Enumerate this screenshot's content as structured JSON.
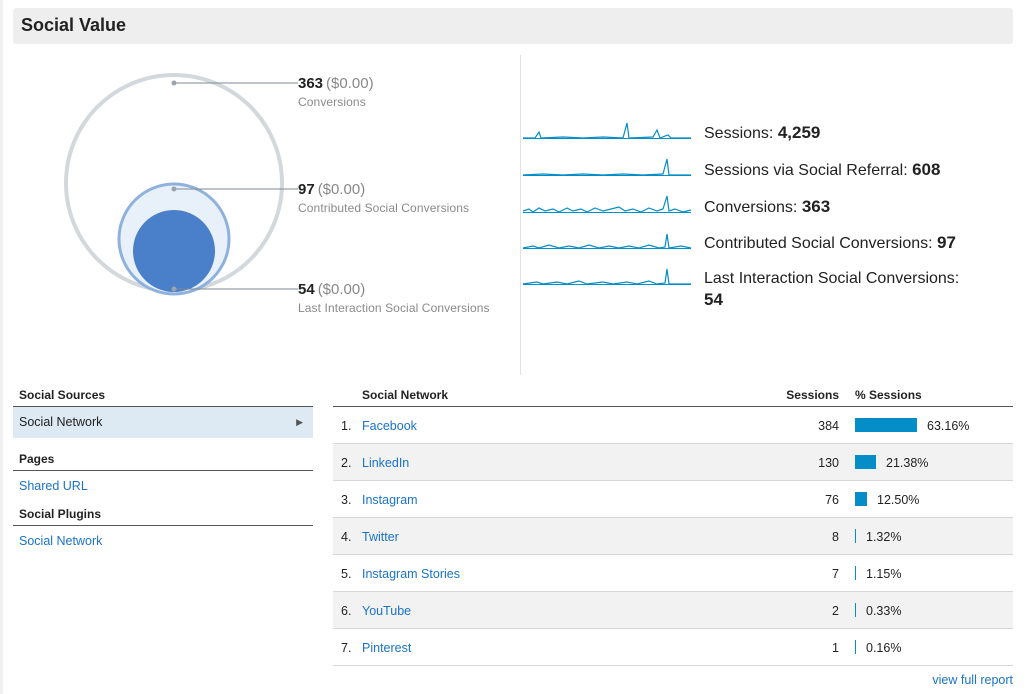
{
  "title": "Social Value",
  "circles": {
    "conversions": {
      "value": "363",
      "money": "($0.00)",
      "label": "Conversions"
    },
    "contributed": {
      "value": "97",
      "money": "($0.00)",
      "label": "Contributed Social Conversions"
    },
    "last": {
      "value": "54",
      "money": "($0.00)",
      "label": "Last Interaction Social Conversions"
    }
  },
  "sparklines": [
    {
      "label": "Sessions:",
      "value": "4,259"
    },
    {
      "label": "Sessions via Social Referral:",
      "value": "608"
    },
    {
      "label": "Conversions:",
      "value": "363"
    },
    {
      "label": "Contributed Social Conversions:",
      "value": "97"
    },
    {
      "label": "Last Interaction Social Conversions:",
      "value": "54"
    }
  ],
  "nav": {
    "sections": [
      {
        "header": "Social Sources",
        "items": [
          "Social Network"
        ]
      },
      {
        "header": "Pages",
        "items": [
          "Shared URL"
        ]
      },
      {
        "header": "Social Plugins",
        "items": [
          "Social Network"
        ]
      }
    ]
  },
  "table": {
    "headers": {
      "network": "Social Network",
      "sessions": "Sessions",
      "pct": "% Sessions"
    },
    "rows": [
      {
        "num": "1.",
        "name": "Facebook",
        "sessions": "384",
        "pct": "63.16%",
        "fraction": 0.6316
      },
      {
        "num": "2.",
        "name": "LinkedIn",
        "sessions": "130",
        "pct": "21.38%",
        "fraction": 0.2138
      },
      {
        "num": "3.",
        "name": "Instagram",
        "sessions": "76",
        "pct": "12.50%",
        "fraction": 0.125
      },
      {
        "num": "4.",
        "name": "Twitter",
        "sessions": "8",
        "pct": "1.32%",
        "fraction": 0.0132
      },
      {
        "num": "5.",
        "name": "Instagram Stories",
        "sessions": "7",
        "pct": "1.15%",
        "fraction": 0.0115
      },
      {
        "num": "6.",
        "name": "YouTube",
        "sessions": "2",
        "pct": "0.33%",
        "fraction": 0.0033
      },
      {
        "num": "7.",
        "name": "Pinterest",
        "sessions": "1",
        "pct": "0.16%",
        "fraction": 0.0016
      }
    ]
  },
  "footer_link": "view full report",
  "colors": {
    "accent": "#058dc7",
    "link": "#1a73c8",
    "circle_fill": "#4a7fc9"
  }
}
